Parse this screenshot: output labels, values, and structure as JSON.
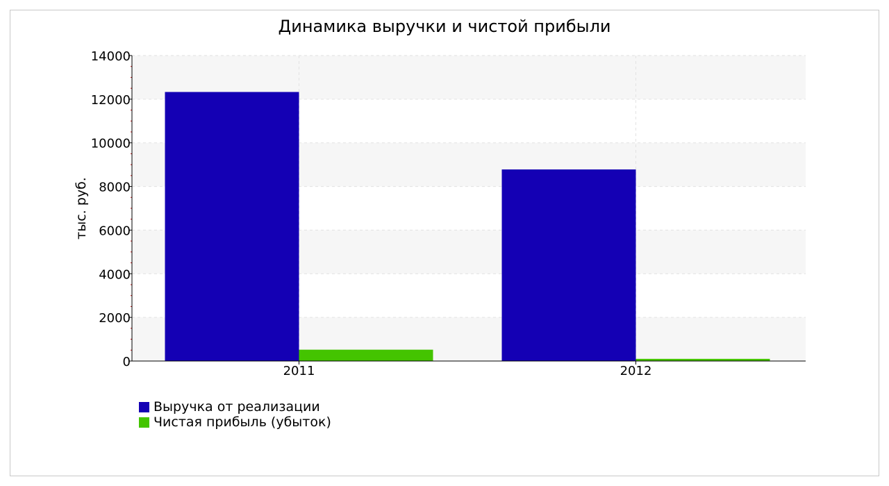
{
  "chart_data": {
    "type": "bar",
    "title": "Динамика выручки и чистой прибыли",
    "xlabel": "",
    "ylabel": "тыс. руб.",
    "categories": [
      "2011",
      "2012"
    ],
    "series": [
      {
        "name": "Выручка от реализации",
        "color": "#1400b4",
        "values": [
          12330,
          8780
        ]
      },
      {
        "name": "Чистая прибыль (убыток)",
        "color": "#44c400",
        "values": [
          520,
          100
        ]
      }
    ],
    "ylim": [
      0,
      14000
    ],
    "yticks": [
      "0",
      "2000",
      "4000",
      "6000",
      "8000",
      "10000",
      "12000",
      "14000"
    ],
    "grid": true,
    "legend_position": "bottom-left"
  }
}
